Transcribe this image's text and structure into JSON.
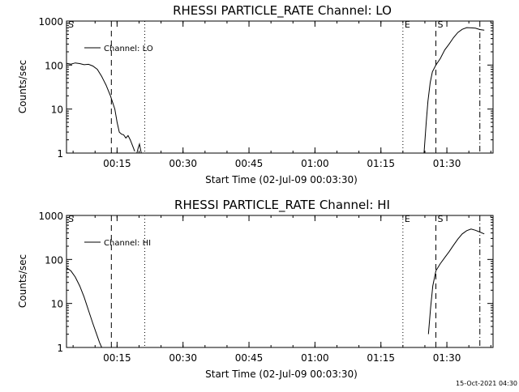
{
  "footer_timestamp": "15-Oct-2021 04:30",
  "chart_data": [
    {
      "type": "line",
      "title": "RHESSI PARTICLE_RATE Channel: LO",
      "xlabel": "Start Time (02-Jul-09 00:03:30)",
      "ylabel": "Counts/sec",
      "x_tick_labels": [
        "00:15",
        "00:30",
        "00:45",
        "01:00",
        "01:15",
        "01:30"
      ],
      "x_ticks_min": [
        11.5,
        26.5,
        41.5,
        56.5,
        71.5,
        86.5
      ],
      "xlim": [
        0,
        97
      ],
      "ylim": [
        1,
        1000
      ],
      "yscale": "log",
      "y_tick_labels": [
        "1",
        "10",
        "100",
        "1000"
      ],
      "y_ticks": [
        1,
        10,
        100,
        1000
      ],
      "legend": {
        "label": "Channel: LO",
        "placement": "top-left"
      },
      "series": [
        {
          "name": "Channel: LO",
          "segments": [
            {
              "x": [
                0,
                1,
                2,
                3,
                4,
                5,
                6,
                7,
                8,
                9,
                10,
                11,
                11.5,
                12,
                12.5,
                13,
                13.5,
                14,
                14.5,
                15,
                15.5
              ],
              "y": [
                110,
                105,
                112,
                108,
                102,
                104,
                95,
                80,
                55,
                35,
                20,
                10,
                5,
                3,
                2.7,
                2.6,
                2.2,
                2.5,
                2.0,
                1.5,
                1.1
              ]
            },
            {
              "x": [
                16,
                16.3,
                16.6,
                17
              ],
              "y": [
                1.0,
                1.3,
                1.6,
                1.0
              ]
            },
            {
              "x": [
                81.3,
                81.8,
                82.2,
                82.7,
                83.2,
                84,
                85,
                86,
                87,
                88,
                89,
                90,
                91,
                92,
                93,
                94,
                95
              ],
              "y": [
                1,
                5,
                15,
                40,
                70,
                100,
                140,
                220,
                300,
                420,
                550,
                650,
                710,
                700,
                690,
                640,
                620
              ]
            }
          ]
        }
      ],
      "annotations": [
        {
          "label": "S",
          "x_min": 0,
          "style": "none"
        },
        {
          "label": "",
          "x_min": 10.2,
          "style": "dashed"
        },
        {
          "label": "",
          "x_min": 17.8,
          "style": "dotted"
        },
        {
          "label": "E",
          "x_min": 76.5,
          "style": "dotted"
        },
        {
          "label": "S",
          "x_min": 84,
          "style": "dashed"
        },
        {
          "label": "",
          "x_min": 94,
          "style": "dashdot"
        }
      ]
    },
    {
      "type": "line",
      "title": "RHESSI PARTICLE_RATE Channel: HI",
      "xlabel": "Start Time (02-Jul-09 00:03:30)",
      "ylabel": "Counts/sec",
      "x_tick_labels": [
        "00:15",
        "00:30",
        "00:45",
        "01:00",
        "01:15",
        "01:30"
      ],
      "x_ticks_min": [
        11.5,
        26.5,
        41.5,
        56.5,
        71.5,
        86.5
      ],
      "xlim": [
        0,
        97
      ],
      "ylim": [
        1,
        1000
      ],
      "yscale": "log",
      "y_tick_labels": [
        "1",
        "10",
        "100",
        "1000"
      ],
      "y_ticks": [
        1,
        10,
        100,
        1000
      ],
      "legend": {
        "label": "Channel: HI",
        "placement": "top-left"
      },
      "series": [
        {
          "name": "Channel: HI",
          "segments": [
            {
              "x": [
                0,
                1,
                2,
                3,
                4,
                5,
                6,
                7,
                7.5,
                8
              ],
              "y": [
                65,
                55,
                40,
                25,
                14,
                7,
                3.5,
                1.8,
                1.3,
                1.0
              ]
            },
            {
              "x": [
                82.3,
                82.8,
                83.3,
                84,
                85,
                86,
                87,
                88,
                89,
                90,
                91,
                92,
                93,
                94,
                95
              ],
              "y": [
                2,
                8,
                25,
                55,
                80,
                110,
                150,
                210,
                290,
                380,
                450,
                490,
                460,
                420,
                380
              ]
            }
          ]
        }
      ],
      "annotations": [
        {
          "label": "S",
          "x_min": 0,
          "style": "none"
        },
        {
          "label": "",
          "x_min": 10.2,
          "style": "dashed"
        },
        {
          "label": "",
          "x_min": 17.8,
          "style": "dotted"
        },
        {
          "label": "E",
          "x_min": 76.5,
          "style": "dotted"
        },
        {
          "label": "S",
          "x_min": 84,
          "style": "dashed"
        },
        {
          "label": "",
          "x_min": 94,
          "style": "dashdot"
        }
      ]
    }
  ]
}
